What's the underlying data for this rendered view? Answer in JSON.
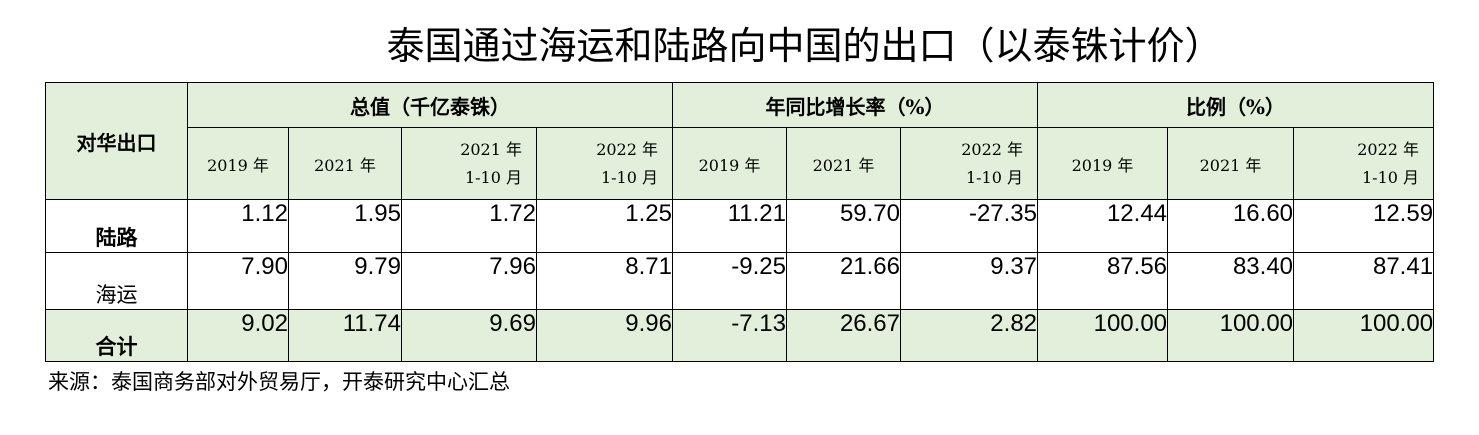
{
  "title": "泰国通过海运和陆路向中国的出口（以泰铢计价）",
  "table": {
    "corner_label": "对华出口",
    "groups": [
      "总值（千亿泰铢）",
      "年同比增长率（%）",
      "比例（%）"
    ],
    "group1_years": [
      "2019 年",
      "2021 年",
      "2021 年",
      "2022 年"
    ],
    "group1_periods": [
      "",
      "",
      "1-10 月",
      "1-10 月"
    ],
    "group2_years": [
      "2019 年",
      "2021 年",
      "2022 年"
    ],
    "group2_periods": [
      "",
      "",
      "1-10 月"
    ],
    "group3_years": [
      "2019 年",
      "2021 年",
      "2022 年"
    ],
    "group3_periods": [
      "",
      "",
      "1-10 月"
    ],
    "rows": [
      {
        "label": "陆路",
        "values": [
          "1.12",
          "1.95",
          "1.72",
          "1.25",
          "11.21",
          "59.70",
          "-27.35",
          "12.44",
          "16.60",
          "12.59"
        ]
      },
      {
        "label": "海运",
        "values": [
          "7.90",
          "9.79",
          "7.96",
          "8.71",
          "-9.25",
          "21.66",
          "9.37",
          "87.56",
          "83.40",
          "87.41"
        ]
      },
      {
        "label": "合计",
        "values": [
          "9.02",
          "11.74",
          "9.69",
          "9.96",
          "-7.13",
          "26.67",
          "2.82",
          "100.00",
          "100.00",
          "100.00"
        ]
      }
    ]
  },
  "source": "来源：泰国商务部对外贸易厅，开泰研究中心汇总",
  "colors": {
    "header_fill": "#e2efda",
    "border": "#000000"
  }
}
